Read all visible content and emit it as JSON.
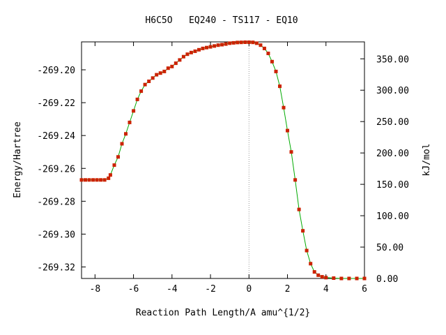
{
  "chart_data": {
    "type": "scatter",
    "title": "H6C5O   EQ240 - TS117 - EQ10",
    "xlabel": "Reaction Path Length/A amu^{1/2}",
    "ylabel": "Energy/Hartree",
    "y2label": "kJ/mol",
    "xlim": [
      -8.7,
      6.0
    ],
    "ylim": [
      -269.327,
      -269.183
    ],
    "y2lim": [
      0.0,
      377.0
    ],
    "x_ticks": [
      "-8",
      "-6",
      "-4",
      "-2",
      "0",
      "2",
      "4",
      "6"
    ],
    "x_tick_values": [
      -8,
      -6,
      -4,
      -2,
      0,
      2,
      4,
      6
    ],
    "y_ticks": [
      "-269.20",
      "-269.22",
      "-269.24",
      "-269.26",
      "-269.28",
      "-269.30",
      "-269.32"
    ],
    "y_tick_values": [
      -269.2,
      -269.22,
      -269.24,
      -269.26,
      -269.28,
      -269.3,
      -269.32
    ],
    "y2_ticks": [
      "350.00",
      "300.00",
      "250.00",
      "200.00",
      "150.00",
      "100.00",
      "50.00",
      "0.00"
    ],
    "y2_tick_values": [
      350,
      300,
      250,
      200,
      150,
      100,
      50,
      0
    ],
    "ts_marker_x": 0.0,
    "grid": false,
    "series": [
      {
        "line_color": "#00aa00",
        "marker_color": "#cc2200",
        "x": [
          -8.7,
          -8.5,
          -8.3,
          -8.1,
          -7.9,
          -7.7,
          -7.5,
          -7.3,
          -7.2,
          -7.0,
          -6.8,
          -6.6,
          -6.4,
          -6.2,
          -6.0,
          -5.8,
          -5.6,
          -5.4,
          -5.2,
          -5.0,
          -4.8,
          -4.6,
          -4.4,
          -4.2,
          -4.0,
          -3.8,
          -3.6,
          -3.4,
          -3.2,
          -3.0,
          -2.8,
          -2.6,
          -2.4,
          -2.2,
          -2.0,
          -1.8,
          -1.6,
          -1.4,
          -1.2,
          -1.0,
          -0.8,
          -0.6,
          -0.4,
          -0.2,
          0.0,
          0.2,
          0.4,
          0.6,
          0.8,
          1.0,
          1.2,
          1.4,
          1.6,
          1.8,
          2.0,
          2.2,
          2.4,
          2.6,
          2.8,
          3.0,
          3.2,
          3.4,
          3.6,
          3.8,
          4.0,
          4.4,
          4.8,
          5.2,
          5.6,
          6.0
        ],
        "y": [
          -269.267,
          -269.267,
          -269.267,
          -269.267,
          -269.267,
          -269.267,
          -269.267,
          -269.266,
          -269.264,
          -269.258,
          -269.253,
          -269.245,
          -269.239,
          -269.232,
          -269.225,
          -269.218,
          -269.213,
          -269.209,
          -269.207,
          -269.205,
          -269.203,
          -269.202,
          -269.201,
          -269.199,
          -269.198,
          -269.196,
          -269.194,
          -269.192,
          -269.1905,
          -269.1895,
          -269.1887,
          -269.1878,
          -269.187,
          -269.1865,
          -269.186,
          -269.1855,
          -269.185,
          -269.1847,
          -269.1843,
          -269.1838,
          -269.1836,
          -269.1834,
          -269.1833,
          -269.1832,
          -269.1832,
          -269.1833,
          -269.1838,
          -269.185,
          -269.187,
          -269.19,
          -269.195,
          -269.201,
          -269.21,
          -269.223,
          -269.237,
          -269.25,
          -269.267,
          -269.285,
          -269.298,
          -269.31,
          -269.318,
          -269.323,
          -269.325,
          -269.326,
          -269.3265,
          -269.3268,
          -269.327,
          -269.327,
          -269.327,
          -269.327
        ]
      }
    ]
  }
}
